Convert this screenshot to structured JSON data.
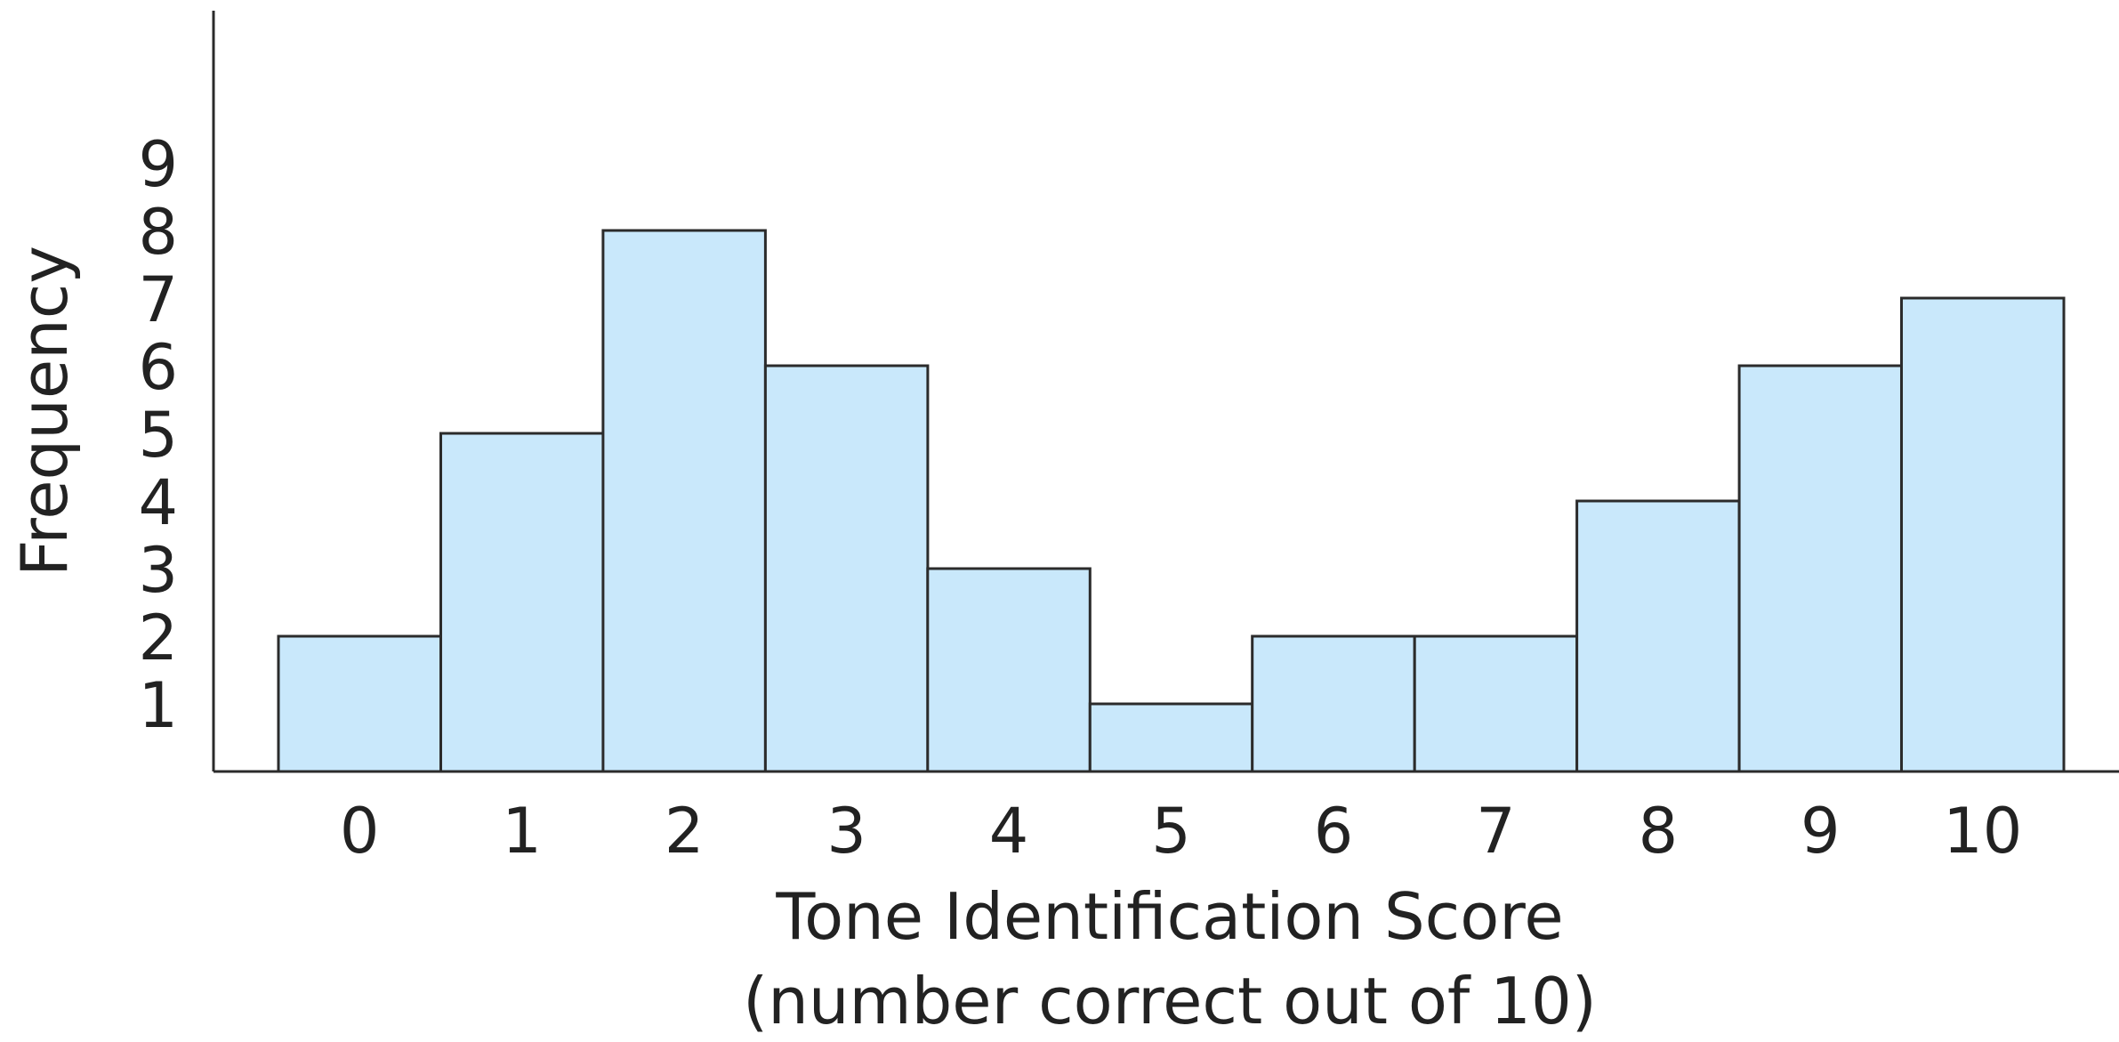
{
  "chart_data": {
    "type": "bar",
    "histogram": true,
    "categories": [
      "0",
      "1",
      "2",
      "3",
      "4",
      "5",
      "6",
      "7",
      "8",
      "9",
      "10"
    ],
    "values": [
      2,
      5,
      8,
      6,
      3,
      1,
      2,
      2,
      4,
      6,
      7
    ],
    "y_ticks": [
      "1",
      "2",
      "3",
      "4",
      "5",
      "6",
      "7",
      "8",
      "9"
    ],
    "ylim": [
      0,
      10
    ],
    "title": "",
    "xlabel_line1": "Tone Identification Score",
    "xlabel_line2": "(number correct out of 10)",
    "ylabel": "Frequency",
    "grid": false,
    "legend": "none",
    "bar_fill": "#c9e8fb",
    "bar_edge": "#2b2b2b"
  }
}
